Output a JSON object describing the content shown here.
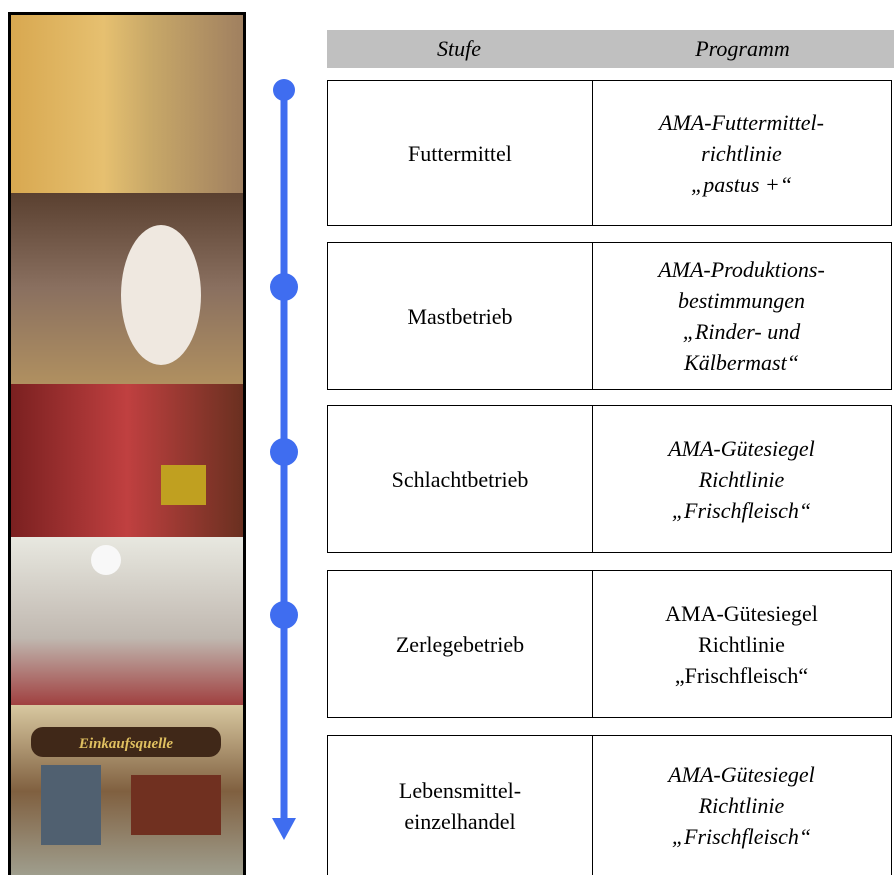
{
  "header": {
    "stage": "Stufe",
    "program": "Programm"
  },
  "image_caption": "Einkaufsquelle",
  "rows": [
    {
      "stage": [
        "Futtermittel"
      ],
      "program": [
        "AMA-Futtermittel-",
        "richtlinie",
        "„pastus +“"
      ]
    },
    {
      "stage": [
        "Mastbetrieb"
      ],
      "program": [
        "AMA-Produktions-",
        "bestimmungen",
        "„Rinder- und",
        "Kälbermast“"
      ]
    },
    {
      "stage": [
        "Schlachtbetrieb"
      ],
      "program": [
        "AMA-Gütesiegel",
        "Richtlinie",
        "„Frischfleisch“"
      ]
    },
    {
      "stage": [
        "Zerlegebetrieb"
      ],
      "program": [
        "AMA-Gütesiegel",
        "Richtlinie",
        "„Frischfleisch“"
      ]
    },
    {
      "stage": [
        "Lebensmittel-",
        "einzelhandel"
      ],
      "program": [
        "AMA-Gütesiegel",
        "Richtlinie",
        "„Frischfleisch“"
      ]
    }
  ]
}
